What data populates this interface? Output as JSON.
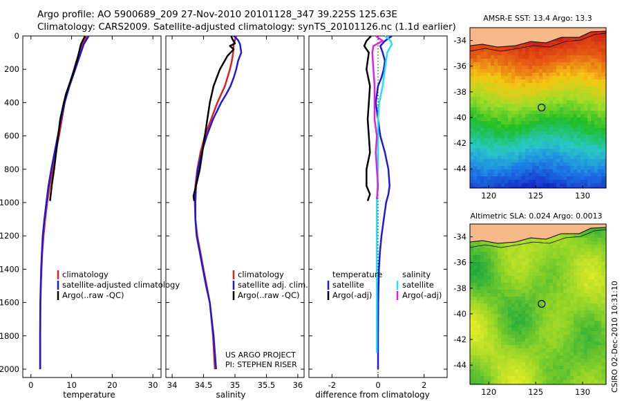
{
  "title_line1": "Argo profile: AO 5900689_209 27-Nov-2010 20101128_347 39.225S 125.63E",
  "title_line2": "Climatology: CARS2009. Satellite-adjusted climatology: synTS_20101126.nc (1.1d earlier)",
  "side_stamp": "CSIRO 02-Dec-2010 10:31:10",
  "credit": [
    "US ARGO PROJECT",
    "PI: STEPHEN RISER"
  ],
  "colors": {
    "red": "#e02020",
    "blue": "#1a1adc",
    "black": "#000000",
    "magenta": "#e020e0",
    "cyan": "#22e0f0"
  },
  "chart_data": [
    {
      "type": "line",
      "xlabel": "temperature",
      "ylim": [
        2050,
        0
      ],
      "xlim": [
        -2,
        32
      ],
      "xticks": [
        "0",
        "10",
        "20",
        "30"
      ],
      "yticks": [
        "0",
        "200",
        "400",
        "600",
        "800",
        "1000",
        "1200",
        "1400",
        "1600",
        "1800",
        "2000"
      ],
      "legend": [
        "climatology",
        "satellite-adjusted climatology",
        "Argo(..raw -QC)"
      ],
      "series": [
        {
          "name": "climatology",
          "color": "red",
          "x": [
            13.6,
            13.3,
            12.6,
            11.9,
            11.2,
            10.6,
            10.0,
            9.4,
            8.8,
            8.3,
            7.6,
            6.9,
            6.1,
            5.4,
            4.6,
            4.0,
            3.5,
            3.1,
            2.8,
            2.6,
            2.45,
            2.35,
            2.3,
            2.3
          ],
          "y": [
            0,
            25,
            50,
            100,
            150,
            200,
            250,
            300,
            350,
            400,
            500,
            600,
            700,
            800,
            900,
            1000,
            1100,
            1200,
            1300,
            1400,
            1500,
            1600,
            1800,
            2000
          ]
        },
        {
          "name": "satellite-adjusted climatology",
          "color": "blue",
          "x": [
            14.2,
            13.6,
            13.0,
            12.3,
            11.6,
            10.9,
            10.2,
            9.5,
            8.9,
            8.3,
            7.4,
            6.6,
            5.8,
            5.0,
            4.3,
            3.8,
            3.3,
            2.9,
            2.7,
            2.5,
            2.4,
            2.3,
            2.25,
            2.25
          ],
          "y": [
            0,
            25,
            50,
            100,
            150,
            200,
            250,
            300,
            350,
            400,
            500,
            600,
            700,
            800,
            900,
            1000,
            1100,
            1200,
            1300,
            1400,
            1500,
            1600,
            1800,
            2000
          ]
        },
        {
          "name": "Argo(..raw -QC)",
          "color": "black",
          "x": [
            13.3,
            12.9,
            12.3,
            11.8,
            11.3,
            10.7,
            10.0,
            9.3,
            8.6,
            8.1,
            7.2,
            6.2,
            5.7,
            5.1,
            4.7
          ],
          "y": [
            0,
            20,
            50,
            100,
            150,
            200,
            250,
            300,
            350,
            400,
            500,
            700,
            800,
            900,
            990
          ]
        }
      ]
    },
    {
      "type": "line",
      "xlabel": "salinity",
      "ylim": [
        2050,
        0
      ],
      "xlim": [
        33.9,
        36.1
      ],
      "xticks": [
        "34",
        "34.5",
        "35",
        "35.5",
        "36"
      ],
      "legend": [
        "climatology",
        "satellite adj. clim.",
        "Argo(..raw -QC)"
      ],
      "series": [
        {
          "name": "climatology",
          "color": "red",
          "x": [
            35.02,
            35.0,
            34.98,
            34.97,
            34.95,
            34.92,
            34.88,
            34.84,
            34.78,
            34.72,
            34.62,
            34.52,
            34.45,
            34.4,
            34.37,
            34.36,
            34.37,
            34.4,
            34.45,
            34.5,
            34.55,
            34.6,
            34.65,
            34.68
          ],
          "y": [
            0,
            25,
            50,
            100,
            150,
            200,
            250,
            300,
            350,
            400,
            500,
            600,
            700,
            800,
            900,
            1000,
            1100,
            1200,
            1300,
            1400,
            1500,
            1600,
            1800,
            2000
          ]
        },
        {
          "name": "satellite adj. clim.",
          "color": "blue",
          "x": [
            34.98,
            35.05,
            35.08,
            35.1,
            35.05,
            35.02,
            34.98,
            34.93,
            34.86,
            34.78,
            34.65,
            34.55,
            34.47,
            34.41,
            34.38,
            34.37,
            34.37,
            34.39,
            34.44,
            34.49,
            34.54,
            34.6,
            34.66,
            34.7
          ],
          "y": [
            0,
            25,
            50,
            100,
            150,
            200,
            250,
            300,
            350,
            400,
            500,
            600,
            700,
            800,
            900,
            1000,
            1100,
            1200,
            1300,
            1400,
            1500,
            1600,
            1800,
            2000
          ]
        },
        {
          "name": "Argo(..raw -QC)",
          "color": "black",
          "x": [
            34.94,
            34.96,
            35.0,
            34.92,
            34.98,
            34.88,
            34.82,
            34.76,
            34.7,
            34.66,
            34.6,
            34.52,
            34.44,
            34.38,
            34.34,
            34.35
          ],
          "y": [
            0,
            20,
            45,
            60,
            80,
            120,
            160,
            200,
            260,
            300,
            400,
            600,
            800,
            900,
            960,
            990
          ]
        }
      ]
    },
    {
      "type": "line",
      "xlabel": "difference from climatology",
      "ylim": [
        2050,
        0
      ],
      "xlim": [
        -3,
        3
      ],
      "xticks": [
        "-2",
        "0",
        "2"
      ],
      "legend": [
        "temperature",
        "satellite",
        "Argo(-adj)",
        "salinity",
        "satellite",
        "Argo(-adj)"
      ],
      "series": [
        {
          "name": "satellite",
          "group": "temperature",
          "color": "blue",
          "x": [
            0.6,
            0.3,
            0.1,
            0.2,
            0.3,
            0.25,
            0.15,
            0.0,
            -0.1,
            0.0,
            0.1,
            0.3,
            0.45,
            0.5,
            0.45,
            0.35,
            0.25,
            0.15,
            0.08,
            0.04,
            0.02,
            0.01,
            0.0,
            0.0
          ],
          "y": [
            0,
            30,
            60,
            100,
            150,
            200,
            250,
            300,
            400,
            500,
            600,
            700,
            800,
            900,
            950,
            1000,
            1100,
            1200,
            1300,
            1400,
            1500,
            1600,
            1800,
            2000
          ]
        },
        {
          "name": "Argo(-adj)",
          "group": "temperature",
          "color": "black",
          "x": [
            -0.3,
            -0.5,
            -0.6,
            -0.4,
            -0.45,
            -0.5,
            -0.35,
            -0.4,
            -0.45,
            -0.4,
            -0.35,
            -0.5,
            -0.5,
            -0.35,
            -0.45
          ],
          "y": [
            0,
            30,
            60,
            100,
            150,
            200,
            300,
            400,
            500,
            600,
            700,
            800,
            900,
            950,
            990
          ]
        },
        {
          "name": "satellite",
          "group": "salinity",
          "color": "cyan",
          "x": [
            0.3,
            0.55,
            0.6,
            0.4,
            0.3,
            0.2,
            0.05,
            0.0,
            0.0,
            -0.02,
            -0.05,
            -0.05,
            -0.05,
            -0.05,
            -0.05,
            -0.05
          ],
          "y": [
            0,
            30,
            50,
            100,
            200,
            300,
            400,
            500,
            700,
            900,
            1000,
            1200,
            1400,
            1600,
            1800,
            1900
          ]
        },
        {
          "name": "Argo(-adj)",
          "group": "salinity",
          "color": "magenta",
          "x": [
            -0.1,
            0.2,
            -0.2,
            -0.25,
            -0.2,
            -0.15,
            -0.15,
            -0.05,
            -0.1,
            -0.05,
            0.0,
            -0.05
          ],
          "y": [
            0,
            30,
            60,
            100,
            200,
            300,
            500,
            600,
            700,
            800,
            900,
            980
          ]
        }
      ]
    },
    {
      "type": "heatmap",
      "title": "AMSR-E SST: 13.4 Argo: 13.3",
      "xlim": [
        118,
        132.5
      ],
      "ylim": [
        -45.5,
        -33
      ],
      "xticks": [
        "120",
        "125",
        "130"
      ],
      "yticks": [
        "-34",
        "-36",
        "-38",
        "-40",
        "-42",
        "-44"
      ],
      "marker": {
        "x": 125.63,
        "y": -39.225
      }
    },
    {
      "type": "heatmap",
      "title": "Altimetric SLA: 0.024 Argo: 0.0013",
      "xlim": [
        118,
        132.5
      ],
      "ylim": [
        -45.5,
        -33
      ],
      "xticks": [
        "120",
        "125",
        "130"
      ],
      "yticks": [
        "-34",
        "-36",
        "-38",
        "-40",
        "-42",
        "-44"
      ],
      "marker": {
        "x": 125.63,
        "y": -39.225
      }
    }
  ]
}
